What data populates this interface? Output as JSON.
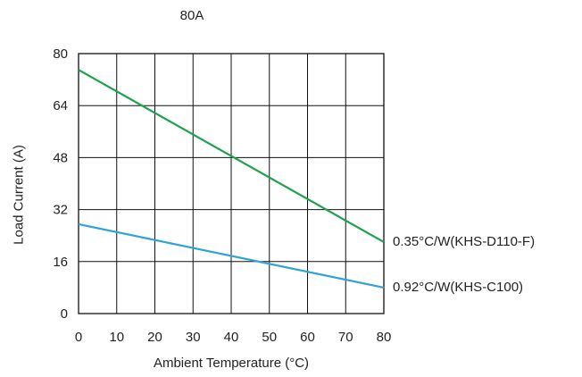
{
  "chart_data": {
    "type": "line",
    "title": "80A",
    "xlabel": "Ambient Temperature (°C)",
    "ylabel": "Load Current (A)",
    "xlim": [
      0,
      80
    ],
    "ylim": [
      0,
      80
    ],
    "x_ticks": [
      "0",
      "10",
      "20",
      "30",
      "40",
      "50",
      "60",
      "70",
      "80"
    ],
    "y_ticks": [
      "0",
      "16",
      "32",
      "48",
      "64",
      "80"
    ],
    "grid": true,
    "series": [
      {
        "name": "0.35°C/W(KHS-D110-F)",
        "color": "#1aa34a",
        "x": [
          0,
          80
        ],
        "y": [
          75,
          22
        ]
      },
      {
        "name": "0.92°C/W(KHS-C100)",
        "color": "#2ea3d6",
        "x": [
          0,
          80
        ],
        "y": [
          27.5,
          8
        ]
      }
    ]
  }
}
